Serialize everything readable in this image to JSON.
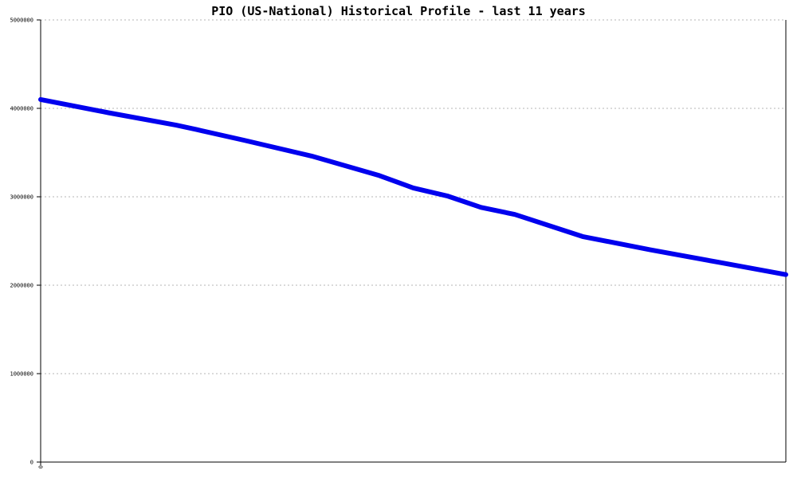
{
  "chart_data": {
    "type": "line",
    "title": "PIO (US-National) Historical Profile - last 11 years",
    "xlabel": "",
    "ylabel": "",
    "x_tick_labels": [
      "0"
    ],
    "y_tick_labels": [
      "0",
      "1000000",
      "2000000",
      "3000000",
      "4000000",
      "5000000"
    ],
    "ylim": [
      0,
      5000000
    ],
    "xlim": [
      0,
      11
    ],
    "grid": true,
    "legend": "none",
    "series": [
      {
        "color": "#0000ee",
        "x": [
          0,
          1,
          2,
          2.3,
          3,
          4,
          5,
          5.5,
          6,
          6.5,
          7,
          8,
          9,
          10,
          11
        ],
        "values": [
          4100000,
          3950000,
          3810000,
          3760000,
          3640000,
          3460000,
          3240000,
          3100000,
          3010000,
          2880000,
          2800000,
          2550000,
          2400000,
          2260000,
          2120000
        ]
      }
    ]
  }
}
